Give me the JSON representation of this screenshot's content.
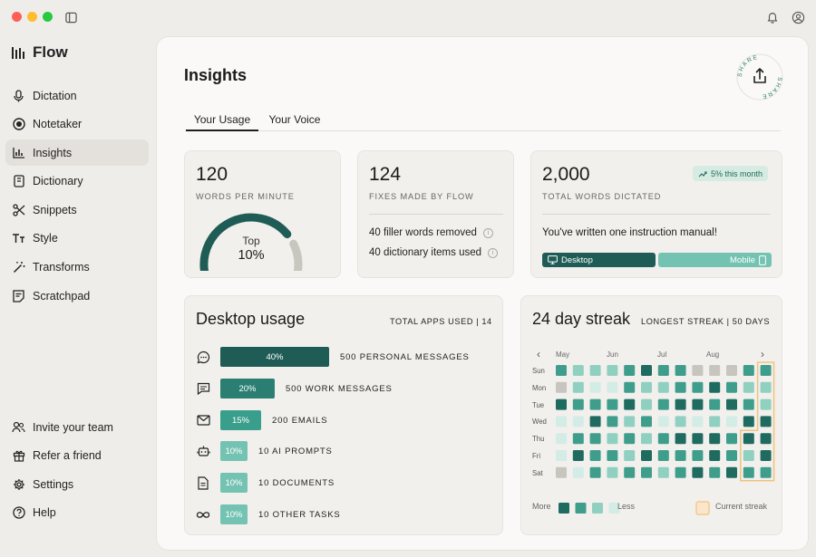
{
  "app": {
    "name": "Flow"
  },
  "sidebar": {
    "top_items": [
      {
        "label": "Dictation",
        "icon": "microphone-icon"
      },
      {
        "label": "Notetaker",
        "icon": "record-icon"
      },
      {
        "label": "Insights",
        "icon": "bar-chart-icon",
        "active": true
      },
      {
        "label": "Dictionary",
        "icon": "book-icon"
      },
      {
        "label": "Snippets",
        "icon": "scissors-icon"
      },
      {
        "label": "Style",
        "icon": "text-style-icon"
      },
      {
        "label": "Transforms",
        "icon": "magic-wand-icon"
      },
      {
        "label": "Scratchpad",
        "icon": "notepad-icon"
      }
    ],
    "bottom_items": [
      {
        "label": "Invite your team",
        "icon": "users-icon"
      },
      {
        "label": "Refer a friend",
        "icon": "gift-icon"
      },
      {
        "label": "Settings",
        "icon": "gear-icon"
      },
      {
        "label": "Help",
        "icon": "help-icon"
      }
    ]
  },
  "page": {
    "title": "Insights",
    "share_label": "SHARE"
  },
  "tabs": [
    "Your Usage",
    "Your Voice"
  ],
  "wpm": {
    "value": "120",
    "caption": "WORDS PER MINUTE",
    "gauge_top": "Top",
    "gauge_value": "10%",
    "gauge_fraction": 0.8
  },
  "fixes": {
    "value": "124",
    "caption": "FIXES MADE BY FLOW",
    "line1": "40 filler words removed",
    "line2": "40 dictionary items used"
  },
  "total": {
    "value": "2,000",
    "caption": "TOTAL WORDS DICTATED",
    "badge": "5% this month",
    "note": "You've written one instruction manual!",
    "desktop_label": "Desktop",
    "mobile_label": "Mobile"
  },
  "desktop_usage": {
    "title": "Desktop usage",
    "subtitle": "TOTAL APPS USED | 14",
    "rows": [
      {
        "pct": "40%",
        "label": "500 PERSONAL MESSAGES",
        "fraction": 0.4,
        "color": "#1f5c55",
        "icon": "chat-bubble-icon"
      },
      {
        "pct": "20%",
        "label": "500 WORK MESSAGES",
        "fraction": 0.2,
        "color": "#2a7f72",
        "icon": "message-square-icon"
      },
      {
        "pct": "15%",
        "label": "200 EMAILS",
        "fraction": 0.15,
        "color": "#3a9e8c",
        "icon": "mail-icon"
      },
      {
        "pct": "10%",
        "label": "10 AI PROMPTS",
        "fraction": 0.1,
        "color": "#74c3b2",
        "icon": "robot-icon"
      },
      {
        "pct": "10%",
        "label": "10 DOCUMENTS",
        "fraction": 0.1,
        "color": "#74c3b2",
        "icon": "document-icon"
      },
      {
        "pct": "10%",
        "label": "10 OTHER TASKS",
        "fraction": 0.1,
        "color": "#74c3b2",
        "icon": "infinity-icon"
      }
    ]
  },
  "streak": {
    "title": "24 day streak",
    "subtitle": "LONGEST STREAK | 50 DAYS",
    "months": [
      "May",
      "Jun",
      "Jul",
      "Aug"
    ],
    "days": [
      "Sun",
      "Mon",
      "Tue",
      "Wed",
      "Thu",
      "Fri",
      "Sat"
    ],
    "legend_more": "More",
    "legend_less": "Less",
    "legend_current": "Current streak",
    "colors": {
      "0": "#c8c4be",
      "1": "#d3ece6",
      "2": "#8fd0c1",
      "3": "#3f9e8b",
      "4": "#1f6b60"
    },
    "current_streak_color": "#f1c27d",
    "grid": [
      [
        3,
        2,
        2,
        2,
        3,
        4,
        3,
        3,
        0,
        0,
        0,
        3,
        3
      ],
      [
        0,
        2,
        1,
        1,
        3,
        2,
        2,
        3,
        3,
        4,
        3,
        2,
        2
      ],
      [
        4,
        3,
        3,
        3,
        4,
        2,
        3,
        4,
        4,
        3,
        4,
        3,
        2
      ],
      [
        1,
        1,
        4,
        3,
        2,
        3,
        1,
        2,
        1,
        2,
        1,
        4,
        4
      ],
      [
        1,
        3,
        3,
        2,
        3,
        2,
        3,
        4,
        4,
        4,
        3,
        4,
        4
      ],
      [
        1,
        4,
        3,
        3,
        2,
        4,
        3,
        3,
        3,
        4,
        3,
        2,
        4
      ],
      [
        0,
        1,
        3,
        2,
        3,
        3,
        2,
        3,
        4,
        3,
        4,
        3,
        3
      ]
    ]
  }
}
